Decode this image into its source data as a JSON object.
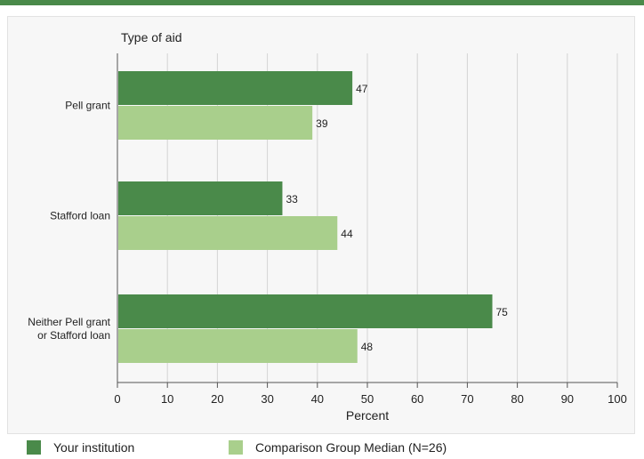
{
  "chart_data": {
    "type": "bar",
    "orientation": "horizontal",
    "title": "Type of aid",
    "xlabel": "Percent",
    "ylabel": "Type of aid",
    "categories": [
      "Pell grant",
      "Stafford loan",
      "Neither Pell grant or Stafford loan"
    ],
    "category_lines": [
      [
        "Pell grant"
      ],
      [
        "Stafford loan"
      ],
      [
        "Neither Pell grant",
        "or Stafford loan"
      ]
    ],
    "series": [
      {
        "name": "Your institution",
        "values": [
          47,
          33,
          75
        ],
        "color": "#4a8a4a"
      },
      {
        "name": "Comparison Group Median (N=26)",
        "values": [
          39,
          44,
          48
        ],
        "color": "#a9cf8c"
      }
    ],
    "xlim": [
      0,
      100
    ],
    "xticks": [
      0,
      10,
      20,
      30,
      40,
      50,
      60,
      70,
      80,
      90,
      100
    ],
    "grid": true,
    "legend_position": "bottom"
  },
  "colors": {
    "accent": "#4a8a4a",
    "light": "#a9cf8c"
  }
}
